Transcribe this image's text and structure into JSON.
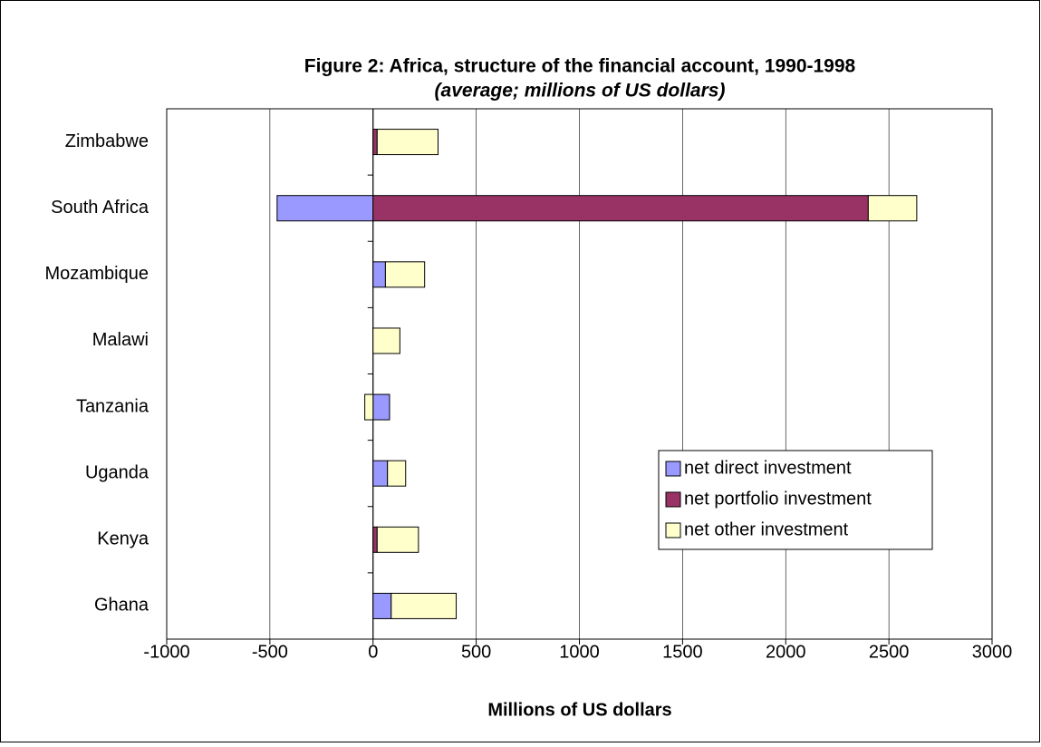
{
  "chart_data": {
    "type": "stacked-hbar",
    "title": "Figure 2: Africa, structure of the financial account, 1990-1998",
    "subtitle": "(average; millions of US dollars)",
    "x_label": "Millions of US dollars",
    "categories": [
      "Zimbabwe",
      "South Africa",
      "Mozambique",
      "Malawi",
      "Tanzania",
      "Uganda",
      "Kenya",
      "Ghana"
    ],
    "series": [
      {
        "name": "net direct investment",
        "color": "#9999ff",
        "values": [
          0,
          -465,
          60,
          0,
          80,
          70,
          0,
          88
        ]
      },
      {
        "name": "net portfolio investment",
        "color": "#993366",
        "values": [
          20,
          2400,
          0,
          0,
          0,
          0,
          20,
          0
        ]
      },
      {
        "name": "net other investment",
        "color": "#ffffcc",
        "values": [
          295,
          235,
          190,
          130,
          -40,
          88,
          200,
          315
        ]
      }
    ],
    "xlim": [
      -1000,
      3000
    ],
    "xticks": [
      -1000,
      -500,
      0,
      500,
      1000,
      1500,
      2000,
      2500,
      3000
    ],
    "grid": true,
    "legend": "lower-right"
  }
}
